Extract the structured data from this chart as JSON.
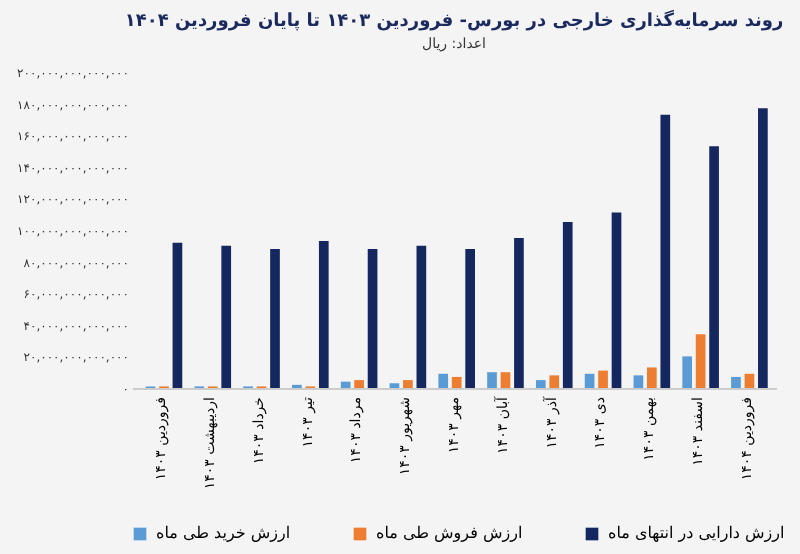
{
  "chart_data": {
    "type": "bar",
    "title": "روند سرمایه‌گذاری خارجی در بورس- فروردین ۱۴۰۳ تا پایان فروردین ۱۴۰۴",
    "subtitle": "اعداد: ریال",
    "categories": [
      "فروردین ۱۴۰۳",
      "اردیبهشت ۱۴۰۳",
      "خرداد ۱۴۰۳",
      "تیر ۱۴۰۳",
      "مرداد ۱۴۰۳",
      "شهریور ۱۴۰۳",
      "مهر ۱۴۰۳",
      "آبان ۱۴۰۳",
      "آذر ۱۴۰۳",
      "دی ۱۴۰۳",
      "بهمن ۱۴۰۳",
      "اسفند ۱۴۰۳",
      "فروردین ۱۴۰۴"
    ],
    "series": [
      {
        "name": "ارزش خرید طی ماه",
        "color": "#5b9bd5",
        "values": [
          1000000000000,
          1000000000000,
          1000000000000,
          2000000000000,
          4000000000000,
          3000000000000,
          9000000000000,
          10000000000000,
          5000000000000,
          9000000000000,
          8000000000000,
          20000000000000,
          7000000000000
        ]
      },
      {
        "name": "ارزش فروش طی ماه",
        "color": "#ed7d31",
        "values": [
          1000000000000,
          1000000000000,
          1000000000000,
          1000000000000,
          5000000000000,
          5000000000000,
          7000000000000,
          10000000000000,
          8000000000000,
          11000000000000,
          13000000000000,
          34000000000000,
          9000000000000
        ]
      },
      {
        "name": "ارزش دارایی در انتهای ماه",
        "color": "#14275e",
        "values": [
          92000000000000,
          90000000000000,
          88000000000000,
          93000000000000,
          88000000000000,
          90000000000000,
          88000000000000,
          95000000000000,
          105000000000000,
          111000000000000,
          173000000000000,
          153000000000000,
          177000000000000
        ]
      }
    ],
    "ylim": [
      0,
      200000000000000
    ],
    "yticks": [
      {
        "value": 0,
        "label": "۰"
      },
      {
        "value": 20000000000000,
        "label": "۲۰,۰۰۰,۰۰۰,۰۰۰,۰۰۰"
      },
      {
        "value": 40000000000000,
        "label": "۴۰,۰۰۰,۰۰۰,۰۰۰,۰۰۰"
      },
      {
        "value": 60000000000000,
        "label": "۶۰,۰۰۰,۰۰۰,۰۰۰,۰۰۰"
      },
      {
        "value": 80000000000000,
        "label": "۸۰,۰۰۰,۰۰۰,۰۰۰,۰۰۰"
      },
      {
        "value": 100000000000000,
        "label": "۱۰۰,۰۰۰,۰۰۰,۰۰۰,۰۰۰"
      },
      {
        "value": 120000000000000,
        "label": "۱۲۰,۰۰۰,۰۰۰,۰۰۰,۰۰۰"
      },
      {
        "value": 140000000000000,
        "label": "۱۴۰,۰۰۰,۰۰۰,۰۰۰,۰۰۰"
      },
      {
        "value": 160000000000000,
        "label": "۱۶۰,۰۰۰,۰۰۰,۰۰۰,۰۰۰"
      },
      {
        "value": 180000000000000,
        "label": "۱۸۰,۰۰۰,۰۰۰,۰۰۰,۰۰۰"
      },
      {
        "value": 200000000000000,
        "label": "۲۰۰,۰۰۰,۰۰۰,۰۰۰,۰۰۰"
      }
    ],
    "grid": false,
    "legend": "bottom"
  }
}
